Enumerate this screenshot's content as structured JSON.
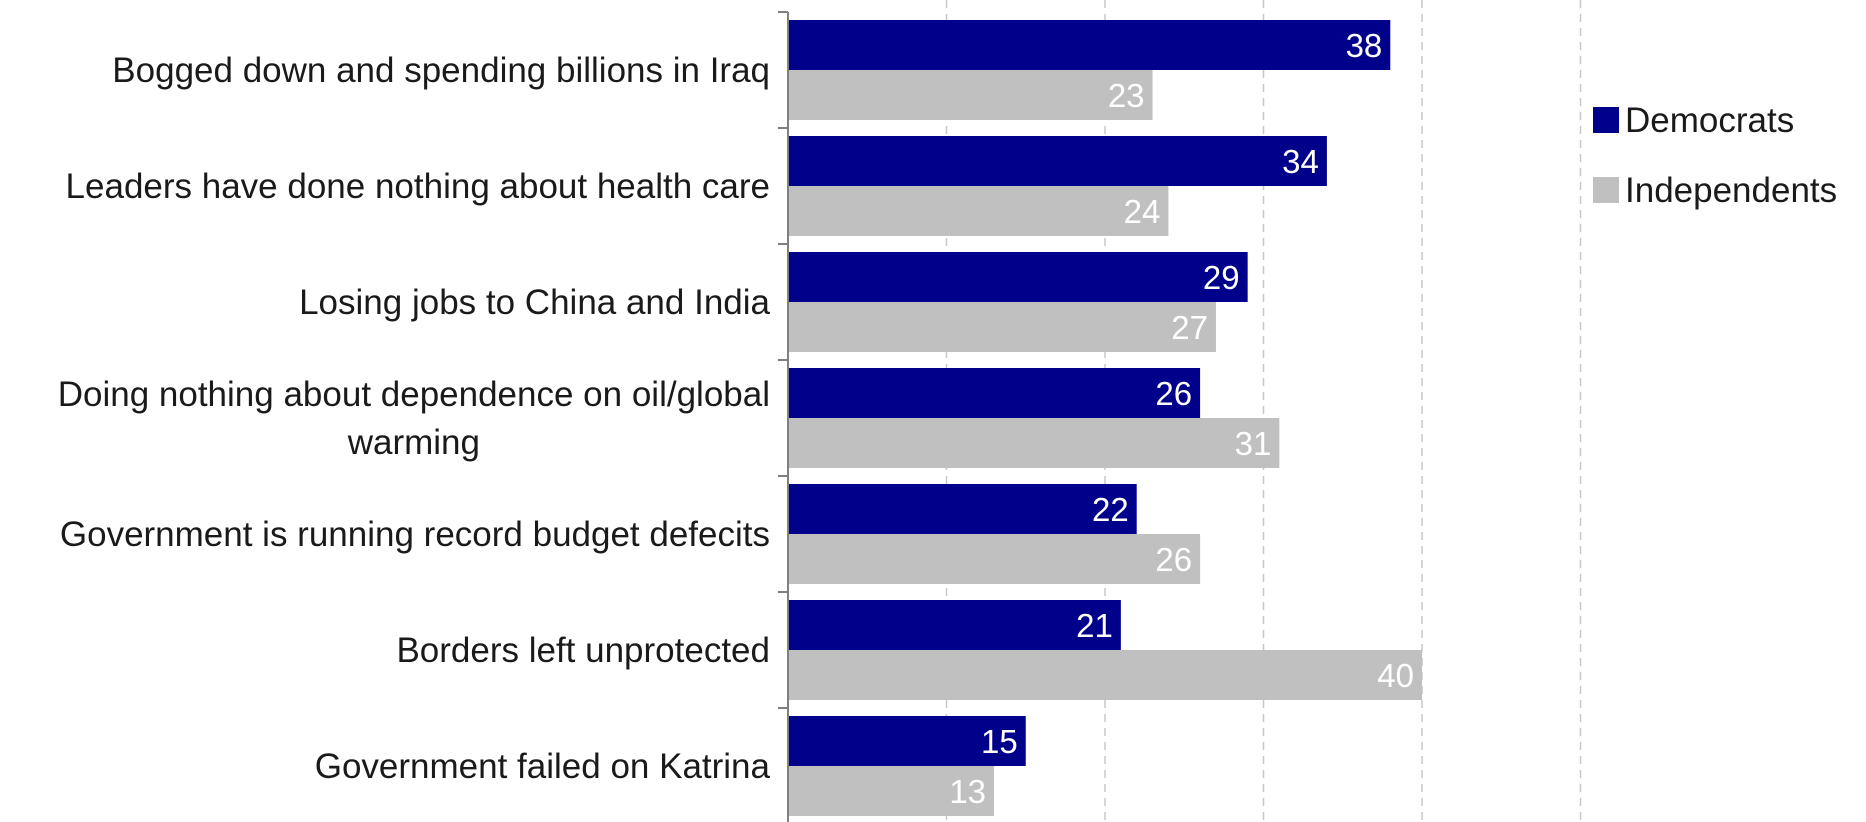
{
  "chart_data": {
    "type": "bar",
    "orientation": "horizontal",
    "categories": [
      "Bogged down and spending billions in Iraq",
      "Leaders have done nothing about health care",
      "Losing jobs to China and India",
      "Doing nothing about dependence on oil/global warming",
      "Government is running record budget defecits",
      "Borders left unprotected",
      "Government failed on Katrina"
    ],
    "category_lines": [
      [
        "Bogged down and spending billions in Iraq"
      ],
      [
        "Leaders have done nothing about health care"
      ],
      [
        "Losing jobs to China and India"
      ],
      [
        "Doing nothing about dependence on oil/global",
        "warming"
      ],
      [
        "Government is running record budget defecits"
      ],
      [
        "Borders left unprotected"
      ],
      [
        "Government failed on Katrina"
      ]
    ],
    "series": [
      {
        "name": "Democrats",
        "color": "#00008b",
        "values": [
          38,
          34,
          29,
          26,
          22,
          21,
          15
        ]
      },
      {
        "name": "Independents",
        "color": "#c0c0c0",
        "values": [
          23,
          24,
          27,
          31,
          26,
          40,
          13
        ]
      }
    ],
    "xlim": [
      0,
      50
    ],
    "grid": "vertical dashed",
    "legend": "right",
    "title": "",
    "xlabel": "",
    "ylabel": ""
  }
}
